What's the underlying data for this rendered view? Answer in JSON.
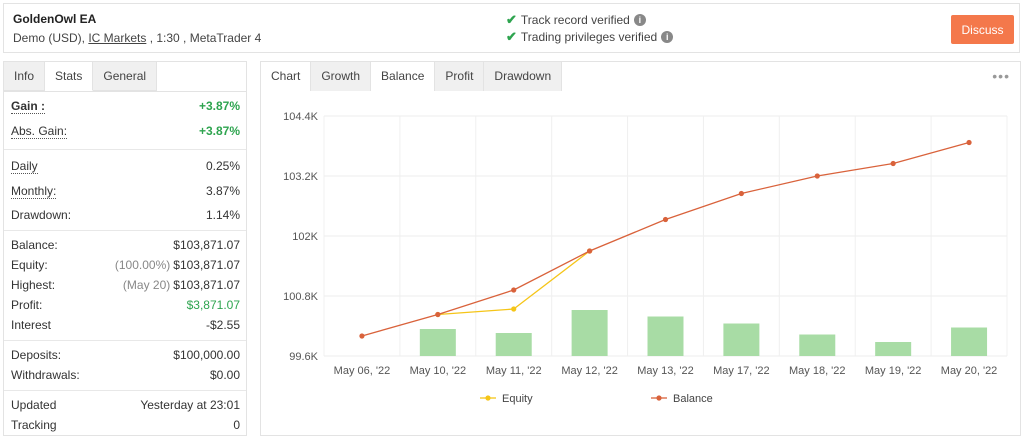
{
  "header": {
    "account_name": "GoldenOwl EA",
    "account_sub_prefix": "Demo (USD), ",
    "broker": "IC Markets",
    "account_sub_suffix": " , 1:30 , MetaTrader 4",
    "verification": [
      {
        "label": "Track record verified"
      },
      {
        "label": "Trading privileges verified"
      }
    ],
    "discuss_label": "Discuss"
  },
  "left_tabs": [
    "Info",
    "Stats",
    "General"
  ],
  "stats": {
    "gain": {
      "label": "Gain :",
      "value": "+3.87%"
    },
    "abs_gain": {
      "label": "Abs. Gain:",
      "value": "+3.87%"
    },
    "daily": {
      "label": "Daily",
      "value": "0.25%"
    },
    "monthly": {
      "label": "Monthly:",
      "value": "3.87%"
    },
    "drawdown": {
      "label": "Drawdown:",
      "value": "1.14%"
    },
    "balance": {
      "label": "Balance:",
      "value": "$103,871.07"
    },
    "equity": {
      "label": "Equity:",
      "prefix": "(100.00%)",
      "value": "$103,871.07"
    },
    "highest": {
      "label": "Highest:",
      "prefix": "(May 20)",
      "value": "$103,871.07"
    },
    "profit": {
      "label": "Profit:",
      "value": "$3,871.07"
    },
    "interest": {
      "label": "Interest",
      "value": "-$2.55"
    },
    "deposits": {
      "label": "Deposits:",
      "value": "$100,000.00"
    },
    "withdrawals": {
      "label": "Withdrawals:",
      "value": "$0.00"
    },
    "updated": {
      "label": "Updated",
      "value": "Yesterday at 23:01"
    },
    "tracking": {
      "label": "Tracking",
      "value": "0"
    }
  },
  "chart_tabs": [
    "Chart",
    "Growth",
    "Balance",
    "Profit",
    "Drawdown"
  ],
  "more_icon": "more-dots-icon",
  "colors": {
    "balance": "#d9623b",
    "equity": "#f5c518",
    "bars": "#a8dca5",
    "accent": "#f4784b",
    "green": "#2ea44f"
  },
  "chart_data": {
    "type": "line",
    "categories": [
      "May 06, '22",
      "May 10, '22",
      "May 11, '22",
      "May 12, '22",
      "May 13, '22",
      "May 17, '22",
      "May 18, '22",
      "May 19, '22",
      "May 20, '22"
    ],
    "y_ticks": [
      "104.4K",
      "103.2K",
      "102K",
      "100.8K",
      "99.6K"
    ],
    "ylim": [
      99600,
      104400
    ],
    "series": [
      {
        "name": "Balance",
        "type": "line",
        "values": [
          100000,
          100430,
          100920,
          101700,
          102330,
          102850,
          103200,
          103450,
          103870
        ]
      },
      {
        "name": "Equity",
        "type": "line",
        "values": [
          null,
          100430,
          100540,
          101700,
          null,
          null,
          null,
          null,
          null
        ]
      },
      {
        "name": "",
        "type": "bar",
        "values": [
          null,
          100140,
          100060,
          100520,
          100390,
          100250,
          100030,
          99880,
          100170
        ]
      }
    ],
    "legend": "bottom",
    "grid": true
  }
}
